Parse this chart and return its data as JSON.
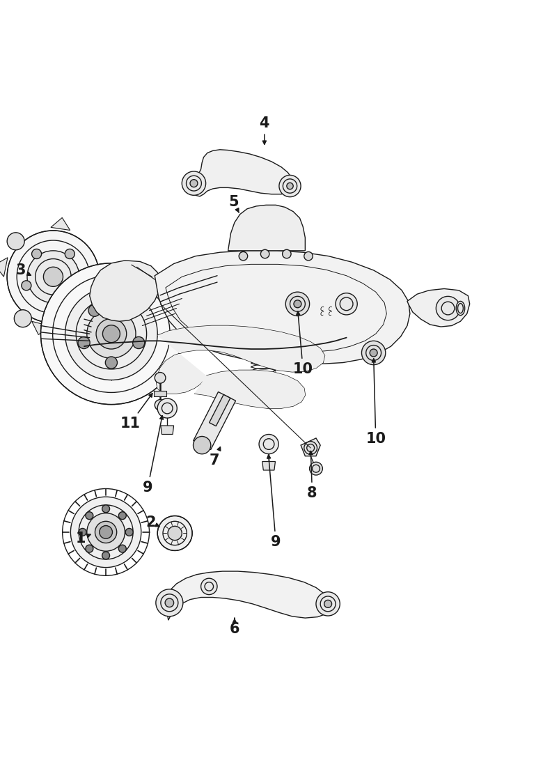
{
  "bg_color": "#ffffff",
  "line_color": "#1a1a1a",
  "lw": 1.0,
  "fig_w": 7.8,
  "fig_h": 10.91,
  "labels": {
    "1": [
      0.2,
      0.805,
      0.215,
      0.77
    ],
    "2": [
      0.32,
      0.8,
      0.322,
      0.774
    ],
    "3": [
      0.078,
      0.678,
      0.098,
      0.693
    ],
    "4": [
      0.487,
      0.028,
      0.487,
      0.075
    ],
    "5": [
      0.442,
      0.178,
      0.445,
      0.2
    ],
    "6": [
      0.43,
      0.94,
      0.43,
      0.914
    ],
    "7": [
      0.402,
      0.668,
      0.378,
      0.658
    ],
    "8": [
      0.59,
      0.742,
      0.578,
      0.718
    ],
    "9a": [
      0.278,
      0.698,
      0.298,
      0.688
    ],
    "9b": [
      0.51,
      0.802,
      0.492,
      0.792
    ],
    "10a": [
      0.562,
      0.484,
      0.548,
      0.51
    ],
    "10b": [
      0.694,
      0.61,
      0.672,
      0.628
    ],
    "11": [
      0.248,
      0.588,
      0.274,
      0.592
    ]
  }
}
